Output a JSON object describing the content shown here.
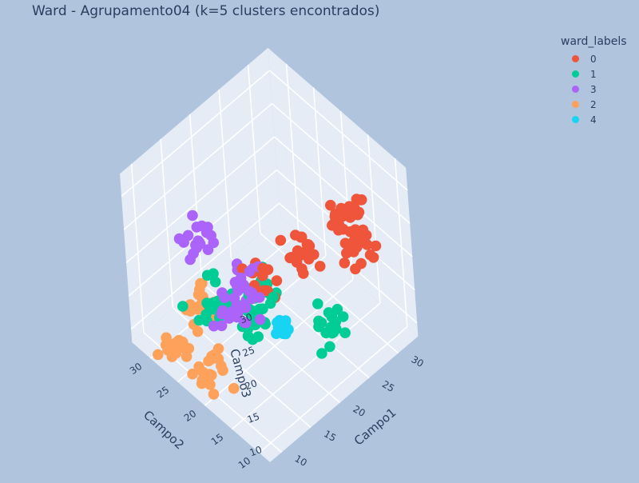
{
  "chart_data": {
    "type": "scatter",
    "title": "Ward - Agrupamento04 (k=5 clusters encontrados)",
    "axes": {
      "x": {
        "label": "Campo1",
        "ticks": [
          10,
          15,
          20,
          25,
          30
        ]
      },
      "y": {
        "label": "Campo2",
        "ticks": [
          10,
          15,
          20,
          25,
          30
        ]
      },
      "z": {
        "label": "Campo3",
        "ticks": [
          10,
          15,
          20,
          25,
          30
        ]
      }
    },
    "legend": {
      "title": "ward_labels",
      "placement": "top-right"
    },
    "series": [
      {
        "name": "0",
        "color": "#ef553b",
        "clusters": [
          {
            "center": [
              25,
              10,
              31
            ],
            "spread": [
              1.2,
              1.2,
              1.2
            ],
            "n": 30
          },
          {
            "center": [
              18,
              11,
              30
            ],
            "spread": [
              1.2,
              1.2,
              1.2
            ],
            "n": 20
          },
          {
            "center": [
              28,
              12,
              22
            ],
            "spread": [
              1.2,
              1.2,
              1.2
            ],
            "n": 20
          },
          {
            "center": [
              12,
              12,
              30
            ],
            "spread": [
              1.2,
              1.2,
              1.2
            ],
            "n": 12
          }
        ]
      },
      {
        "name": "1",
        "color": "#00cc96",
        "clusters": [
          {
            "center": [
              12,
              12,
              28
            ],
            "spread": [
              1.2,
              1.2,
              1.2
            ],
            "n": 16
          },
          {
            "center": [
              26,
              16,
              10
            ],
            "spread": [
              1.2,
              1.2,
              1.2
            ],
            "n": 20
          },
          {
            "center": [
              12,
              22,
              19
            ],
            "spread": [
              1.2,
              1.2,
              1.2
            ],
            "n": 18
          },
          {
            "center": [
              20,
              23,
              10
            ],
            "spread": [
              1.2,
              1.2,
              1.2
            ],
            "n": 22
          }
        ]
      },
      {
        "name": "3",
        "color": "#ab63fa",
        "clusters": [
          {
            "center": [
              10,
              12,
              31
            ],
            "spread": [
              1.2,
              1.2,
              1.2
            ],
            "n": 18
          },
          {
            "center": [
              10,
              21,
              31
            ],
            "spread": [
              1.2,
              1.2,
              1.2
            ],
            "n": 18
          },
          {
            "center": [
              10,
              16,
              23
            ],
            "spread": [
              1.2,
              1.2,
              1.2
            ],
            "n": 16
          }
        ]
      },
      {
        "name": "2",
        "color": "#fea15a",
        "clusters": [
          {
            "center": [
              10,
              21,
              11
            ],
            "spread": [
              1.2,
              1.2,
              1.2
            ],
            "n": 20
          },
          {
            "center": [
              10,
              28,
              10
            ],
            "spread": [
              1.2,
              1.2,
              1.2
            ],
            "n": 20
          },
          {
            "center": [
              16,
              29,
              10
            ],
            "spread": [
              1.2,
              1.2,
              1.2
            ],
            "n": 20
          }
        ]
      },
      {
        "name": "4",
        "color": "#19d3f3",
        "clusters": [
          {
            "center": [
              18,
              16,
              15
            ],
            "spread": [
              0.4,
              0.4,
              0.4
            ],
            "n": 20
          }
        ]
      }
    ],
    "grid": true
  }
}
